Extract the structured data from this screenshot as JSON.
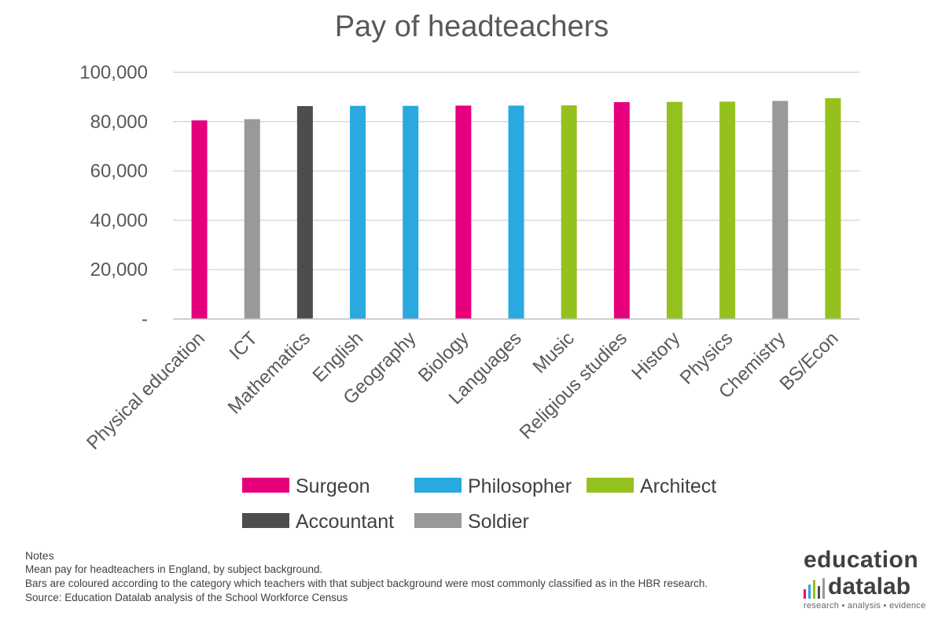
{
  "chart_data": {
    "type": "bar",
    "title": "Pay of headteachers",
    "categories": [
      "Physical education",
      "ICT",
      "Mathematics",
      "English",
      "Geography",
      "Biology",
      "Languages",
      "Music",
      "Religious studies",
      "History",
      "Physics",
      "Chemistry",
      "BS/Econ"
    ],
    "values": [
      80500,
      81000,
      86300,
      86400,
      86400,
      86500,
      86500,
      86600,
      87900,
      88000,
      88100,
      88400,
      89500
    ],
    "bar_groups": [
      "Surgeon",
      "Soldier",
      "Accountant",
      "Philosopher",
      "Philosopher",
      "Surgeon",
      "Philosopher",
      "Architect",
      "Surgeon",
      "Architect",
      "Architect",
      "Soldier",
      "Architect"
    ],
    "ylim": [
      0,
      100000
    ],
    "yticks": [
      0,
      20000,
      40000,
      60000,
      80000,
      100000
    ],
    "ytick_labels": [
      "-",
      "20,000",
      "40,000",
      "60,000",
      "80,000",
      "100,000"
    ],
    "grid": true,
    "legend_placement": "bottom",
    "legend": [
      {
        "name": "Surgeon",
        "color": "#E6007E"
      },
      {
        "name": "Philosopher",
        "color": "#29A9E0"
      },
      {
        "name": "Architect",
        "color": "#95C11F"
      },
      {
        "name": "Accountant",
        "color": "#4D4D4D"
      },
      {
        "name": "Soldier",
        "color": "#999999"
      }
    ]
  },
  "notes": {
    "heading": "Notes",
    "lines": [
      "Mean pay for headteachers in England, by subject background.",
      "Bars are coloured according to the category which teachers with that subject background were most commonly classified as in the HBR research.",
      "Source: Education Datalab analysis of the School Workforce Census"
    ]
  },
  "logo": {
    "word1": "education",
    "word2": "datalab",
    "tagline": "research  •  analysis  •  evidence",
    "bar_colors": [
      "#E6007E",
      "#29A9E0",
      "#95C11F",
      "#4D4D4D",
      "#999999"
    ]
  }
}
